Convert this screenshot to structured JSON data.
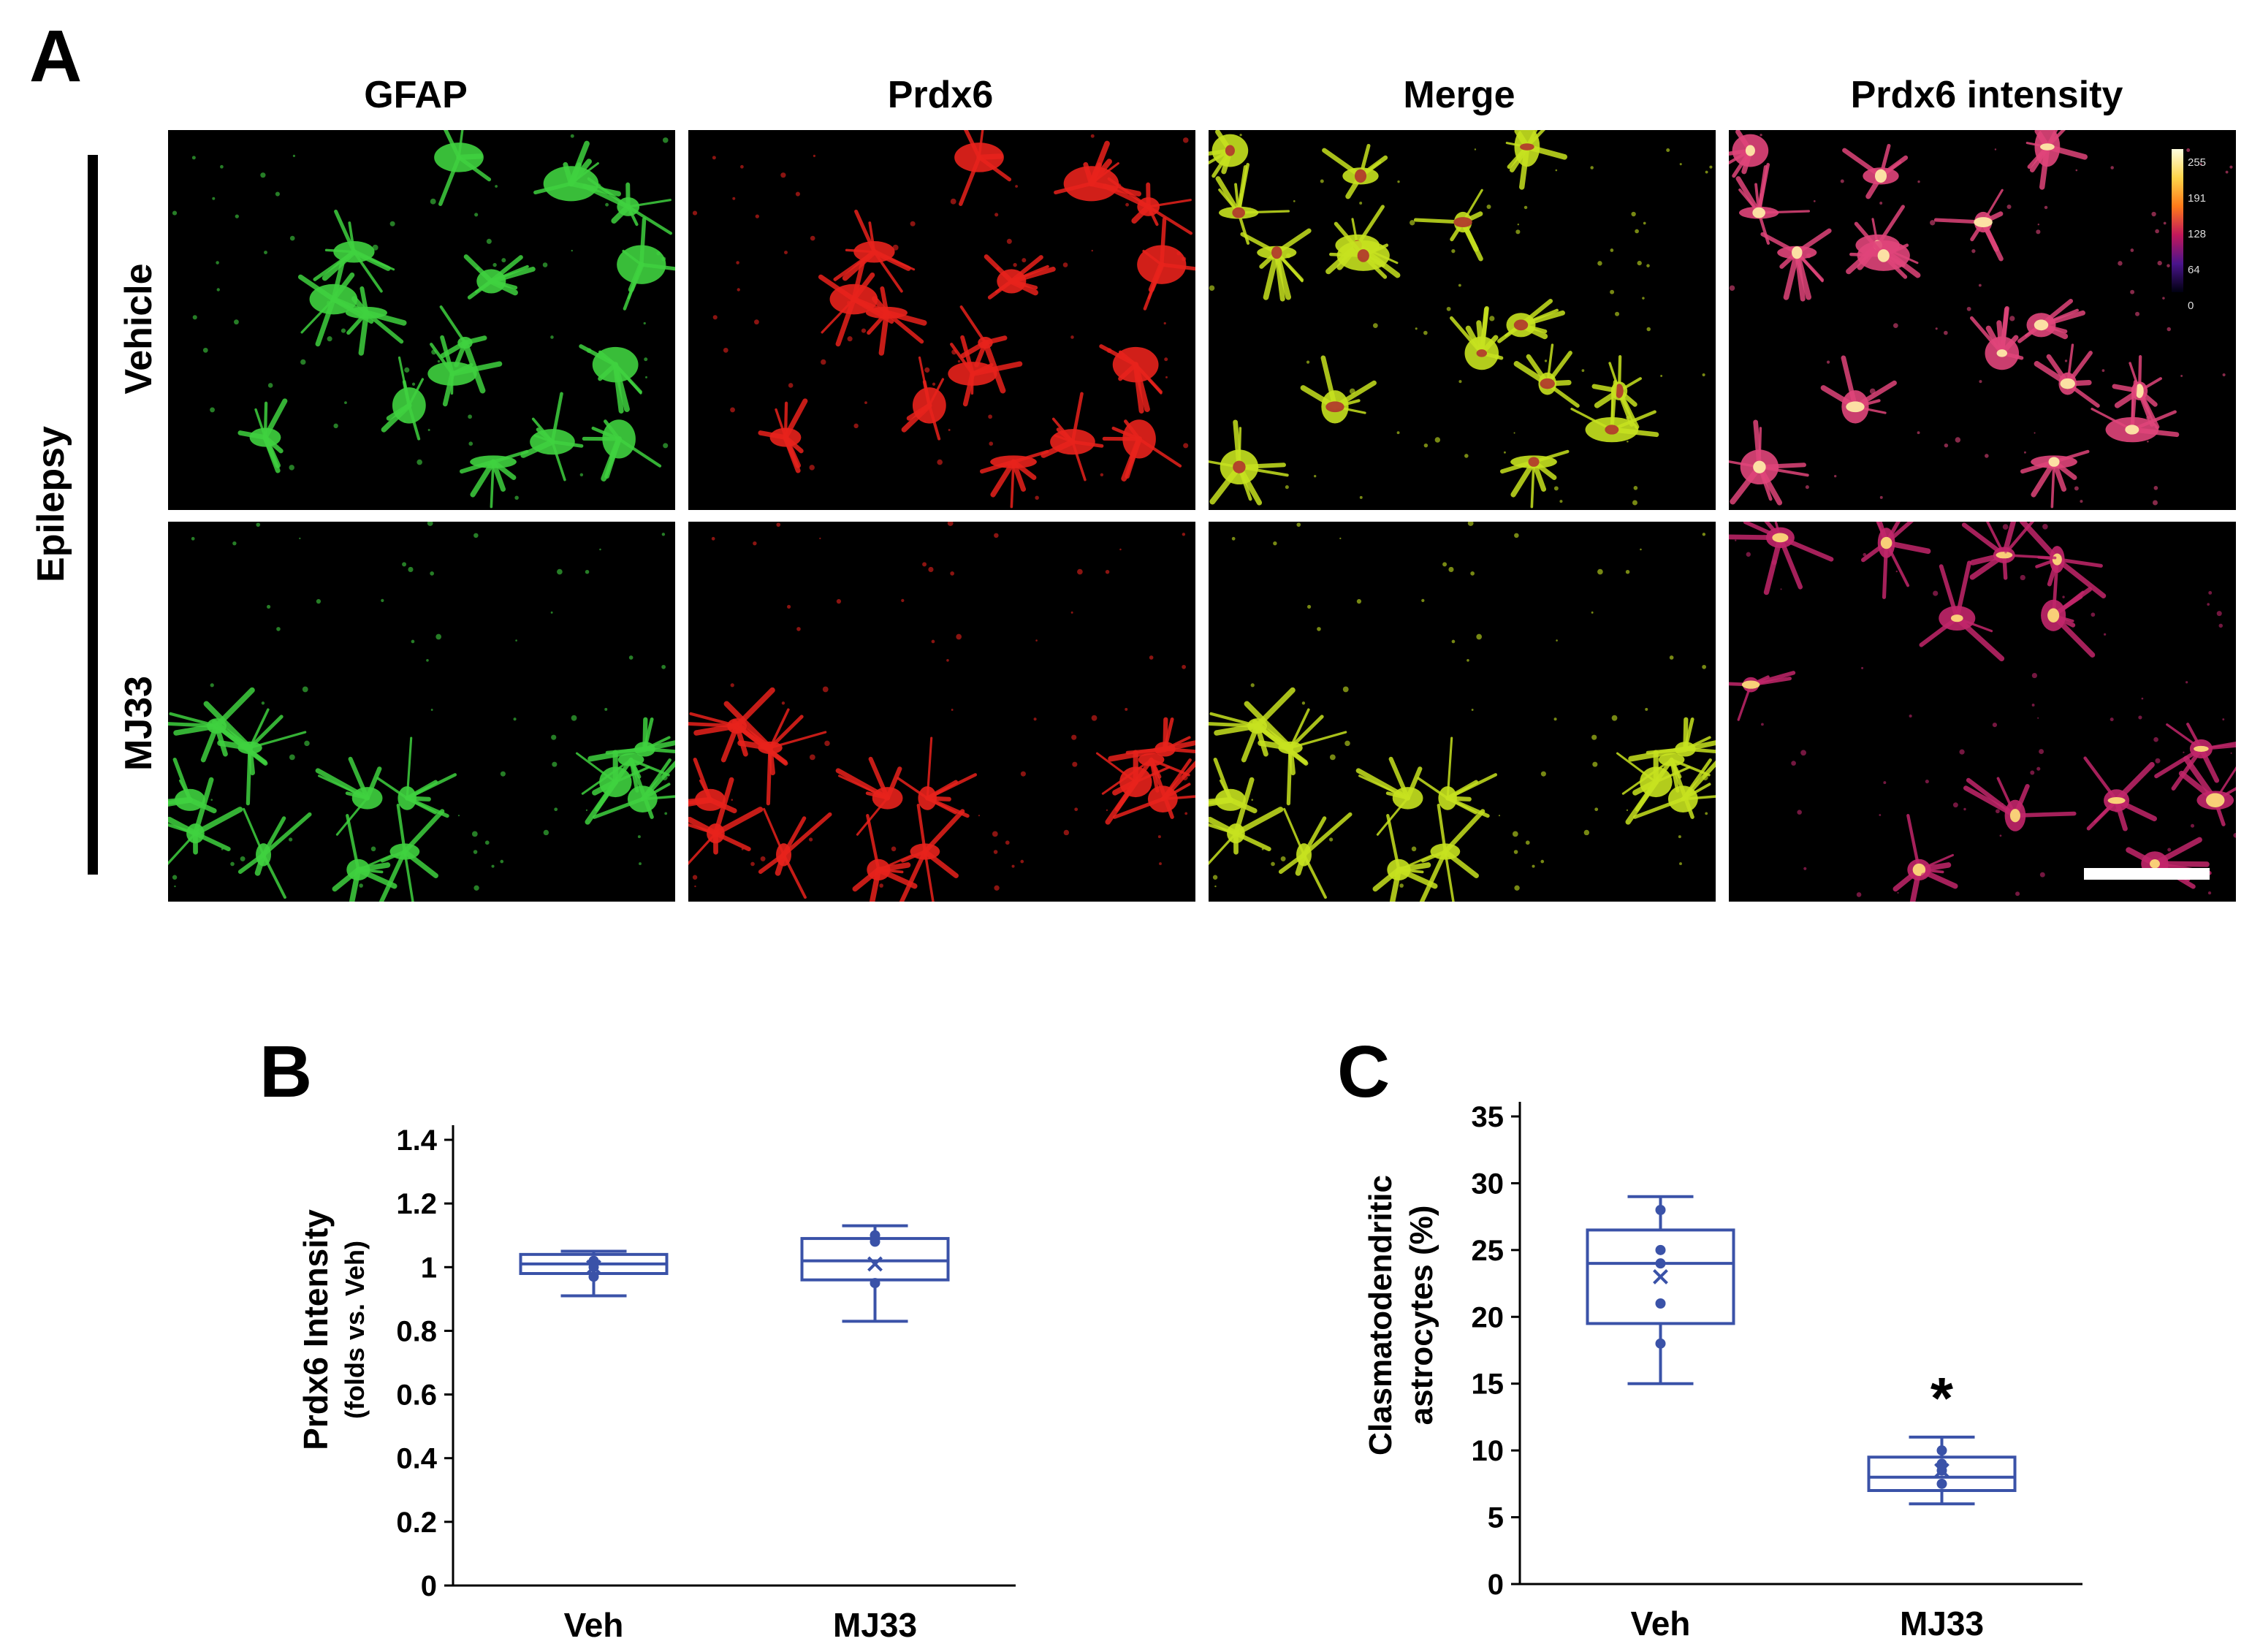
{
  "panelA": {
    "letter": "A",
    "columns": [
      "GFAP",
      "Prdx6",
      "Merge",
      "Prdx6 intensity"
    ],
    "group_label": "Epilepsy",
    "rows": [
      "Vehicle",
      "MJ33"
    ],
    "colorbar_ticks": [
      "255",
      "191",
      "128",
      "64",
      "0"
    ],
    "colors": {
      "gfap": "#3fd13f",
      "prdx6": "#e8221c",
      "merge": "#c7e21f",
      "background": "#000000"
    }
  },
  "panelB": {
    "letter": "B",
    "ylabel_main": "Prdx6 Intensity",
    "ylabel_sub": "(folds vs. Veh)"
  },
  "panelC": {
    "letter": "C",
    "ylabel_line1": "Clasmatodendritic",
    "ylabel_line2": "astrocytes (%)",
    "significance": "*"
  },
  "chart_data": [
    {
      "type": "box",
      "panel": "B",
      "categories": [
        "Veh",
        "MJ33"
      ],
      "ylim": [
        0,
        1.4
      ],
      "yticks": [
        "0",
        "0.2",
        "0.4",
        "0.6",
        "0.8",
        "1",
        "1.2",
        "1.4"
      ],
      "series": [
        {
          "category": "Veh",
          "min": 0.91,
          "q1": 0.98,
          "median": 1.01,
          "q3": 1.04,
          "max": 1.05,
          "mean": 1.0,
          "points": [
            0.97,
            1.0,
            1.02
          ]
        },
        {
          "category": "MJ33",
          "min": 0.83,
          "q1": 0.96,
          "median": 1.02,
          "q3": 1.09,
          "max": 1.13,
          "mean": 1.01,
          "points": [
            0.95,
            1.08,
            1.1
          ]
        }
      ],
      "color": "#3a52a8"
    },
    {
      "type": "box",
      "panel": "C",
      "categories": [
        "Veh",
        "MJ33"
      ],
      "ylim": [
        0,
        35
      ],
      "yticks": [
        "0",
        "5",
        "10",
        "15",
        "20",
        "25",
        "30",
        "35"
      ],
      "series": [
        {
          "category": "Veh",
          "min": 15,
          "q1": 19.5,
          "median": 24,
          "q3": 26.5,
          "max": 29,
          "mean": 23,
          "points": [
            18,
            21,
            24,
            25,
            28
          ]
        },
        {
          "category": "MJ33",
          "min": 6,
          "q1": 7,
          "median": 8,
          "q3": 9.5,
          "max": 11,
          "mean": 8.5,
          "points": [
            7.5,
            8.5,
            9,
            10
          ]
        }
      ],
      "color": "#3a52a8"
    }
  ]
}
